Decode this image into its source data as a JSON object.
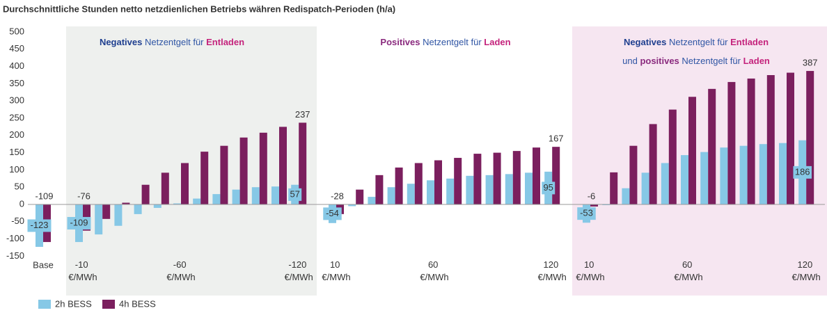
{
  "chart_data": {
    "type": "bar",
    "title": "Durchschnittliche Stunden netto netzdienlichen Betriebs währen Redispatch-Perioden (h/a)",
    "categories": [
      "Base",
      "-10 €/MWh",
      null,
      null,
      null,
      null,
      "-60 €/MWh",
      null,
      null,
      null,
      null,
      null,
      "-120 €/MWh",
      "10 €/MWh",
      null,
      null,
      null,
      null,
      "60 €/MWh",
      null,
      null,
      null,
      null,
      null,
      "120 €/MWh",
      "10 €/MWh",
      null,
      null,
      null,
      null,
      "60 €/MWh",
      null,
      null,
      null,
      null,
      null,
      "120 €/MWh"
    ],
    "series": [
      {
        "name": "2h BESS",
        "color": "#86c8e6",
        "values": [
          -123,
          -109,
          -87,
          -62,
          -28,
          -10,
          3,
          17,
          30,
          43,
          50,
          52,
          57,
          -54,
          -5,
          22,
          50,
          60,
          70,
          75,
          83,
          85,
          88,
          92,
          95,
          -53,
          -2,
          47,
          92,
          120,
          143,
          152,
          165,
          170,
          175,
          178,
          186
        ],
        "labeled_points": [
          0,
          1,
          12,
          13,
          24,
          25,
          36
        ]
      },
      {
        "name": "4h BESS",
        "color": "#7b1f5e",
        "values": [
          -109,
          -76,
          -42,
          5,
          57,
          92,
          120,
          153,
          170,
          194,
          208,
          225,
          237,
          -28,
          43,
          85,
          107,
          120,
          128,
          135,
          147,
          150,
          155,
          165,
          167,
          -6,
          93,
          170,
          233,
          275,
          312,
          335,
          355,
          365,
          375,
          382,
          387
        ],
        "labeled_points": [
          0,
          1,
          12,
          13,
          24,
          25,
          36
        ]
      }
    ],
    "ylim": [
      -150,
      500
    ],
    "yticks": [
      -150,
      -100,
      -50,
      0,
      50,
      100,
      150,
      200,
      250,
      300,
      350,
      400,
      450,
      500
    ],
    "grid": false,
    "legend": "bottom-left",
    "annotations": [
      [
        [
          {
            "text": "Negatives",
            "color": "#1f3f8f",
            "bold": true
          },
          {
            "text": " Netzentgelt für ",
            "color": "#2f55a4",
            "bold": false
          },
          {
            "text": "Entladen",
            "color": "#c4237c",
            "bold": true
          }
        ]
      ],
      [
        [
          {
            "text": "Positives",
            "color": "#8a2a7e",
            "bold": true
          },
          {
            "text": " Netzentgelt für ",
            "color": "#2f55a4",
            "bold": false
          },
          {
            "text": "Laden",
            "color": "#c4237c",
            "bold": true
          }
        ]
      ],
      [
        [
          {
            "text": "Negatives",
            "color": "#1f3f8f",
            "bold": true
          },
          {
            "text": " Netzentgelt für ",
            "color": "#2f55a4",
            "bold": false
          },
          {
            "text": "Entladen",
            "color": "#c4237c",
            "bold": true
          }
        ],
        [
          {
            "text": "und ",
            "color": "#2f55a4",
            "bold": false
          },
          {
            "text": "positives",
            "color": "#8a2a7e",
            "bold": true
          },
          {
            "text": " Netzentgelt für ",
            "color": "#2f55a4",
            "bold": false
          },
          {
            "text": "Laden",
            "color": "#c4237c",
            "bold": true
          }
        ]
      ]
    ]
  }
}
